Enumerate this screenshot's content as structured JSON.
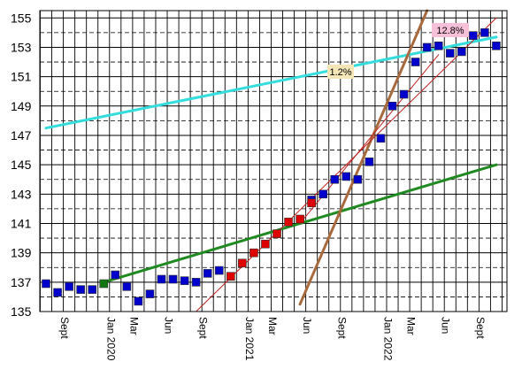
{
  "chart_data": {
    "type": "scatter",
    "title": "",
    "xlabel": "",
    "ylabel": "",
    "ylim": [
      135,
      155.5
    ],
    "y_ticks": [
      135,
      137,
      139,
      141,
      143,
      145,
      147,
      149,
      151,
      153,
      155
    ],
    "y_grid_minor": true,
    "x_grid": "monthly",
    "x_ticks": [
      "Sept",
      "Jan 2020",
      "Mar",
      "Jun",
      "Sept",
      "Jan 2021",
      "Mar",
      "Jun",
      "Sept",
      "Jan 2022",
      "Mar",
      "Jun",
      "Sept"
    ],
    "annotations": [
      {
        "text": "1.2%",
        "color": "#f5e6b8"
      },
      {
        "text": "12.8%",
        "color": "#f5c0d8"
      }
    ],
    "colors": {
      "blue_marker": "#0000cc",
      "red_marker": "#dd0000",
      "green_marker": "#117711",
      "trend_long": "#1f8a1f",
      "trend_upper": "#33dddd",
      "trend_steep": "#a86a3c",
      "channel": "#c02020"
    },
    "series": [
      {
        "marker": "blue",
        "points": [
          [
            "2019-08",
            136.9
          ],
          [
            "2019-09",
            136.3
          ],
          [
            "2019-10",
            136.7
          ],
          [
            "2019-11",
            136.5
          ],
          [
            "2019-12",
            136.5
          ],
          [
            "2020-02",
            137.5
          ],
          [
            "2020-03",
            136.7
          ],
          [
            "2020-04",
            135.7
          ],
          [
            "2020-05",
            136.2
          ],
          [
            "2020-06",
            137.2
          ],
          [
            "2020-07",
            137.2
          ],
          [
            "2020-08",
            137.1
          ],
          [
            "2020-09",
            137.0
          ],
          [
            "2020-10",
            137.6
          ],
          [
            "2020-11",
            137.8
          ],
          [
            "2021-07",
            142.6
          ],
          [
            "2021-08",
            143.0
          ],
          [
            "2021-09",
            144.0
          ],
          [
            "2021-10",
            144.2
          ],
          [
            "2021-11",
            144.0
          ],
          [
            "2021-12",
            145.2
          ],
          [
            "2022-01",
            146.8
          ],
          [
            "2022-02",
            149.0
          ],
          [
            "2022-03",
            149.8
          ],
          [
            "2022-04",
            152.0
          ],
          [
            "2022-05",
            153.0
          ],
          [
            "2022-06",
            153.1
          ],
          [
            "2022-07",
            152.6
          ],
          [
            "2022-08",
            152.7
          ],
          [
            "2022-09",
            153.8
          ],
          [
            "2022-10",
            154.0
          ],
          [
            "2022-11",
            153.1
          ]
        ]
      },
      {
        "marker": "green",
        "points": [
          [
            "2020-01",
            136.9
          ]
        ]
      },
      {
        "marker": "red",
        "points": [
          [
            "2020-12",
            137.4
          ],
          [
            "2021-01",
            138.3
          ],
          [
            "2021-02",
            139.0
          ],
          [
            "2021-03",
            139.6
          ],
          [
            "2021-04",
            140.3
          ],
          [
            "2021-05",
            141.1
          ],
          [
            "2021-06",
            141.3
          ],
          [
            "2021-07",
            142.4
          ]
        ]
      }
    ],
    "trend_lines": [
      {
        "name": "green-trend",
        "color_key": "trend_long",
        "from": [
          "2020-01",
          137.0
        ],
        "to": [
          "2022-11",
          145.0
        ]
      },
      {
        "name": "cyan-trend",
        "color_key": "trend_upper",
        "from": [
          "2019-08",
          147.5
        ],
        "to": [
          "2022-11",
          153.7
        ]
      },
      {
        "name": "brown-trend",
        "color_key": "trend_steep",
        "from": [
          "2021-06",
          135.5
        ],
        "to": [
          "2022-05",
          155.5
        ]
      },
      {
        "name": "channel-lower",
        "color_key": "channel",
        "from": [
          "2020-09",
          135.0
        ],
        "to": [
          "2022-11",
          155.0
        ]
      },
      {
        "name": "channel-upper",
        "color_key": "channel",
        "from": [
          "2021-06",
          141.0
        ],
        "to": [
          "2022-06",
          152.5
        ]
      }
    ]
  }
}
